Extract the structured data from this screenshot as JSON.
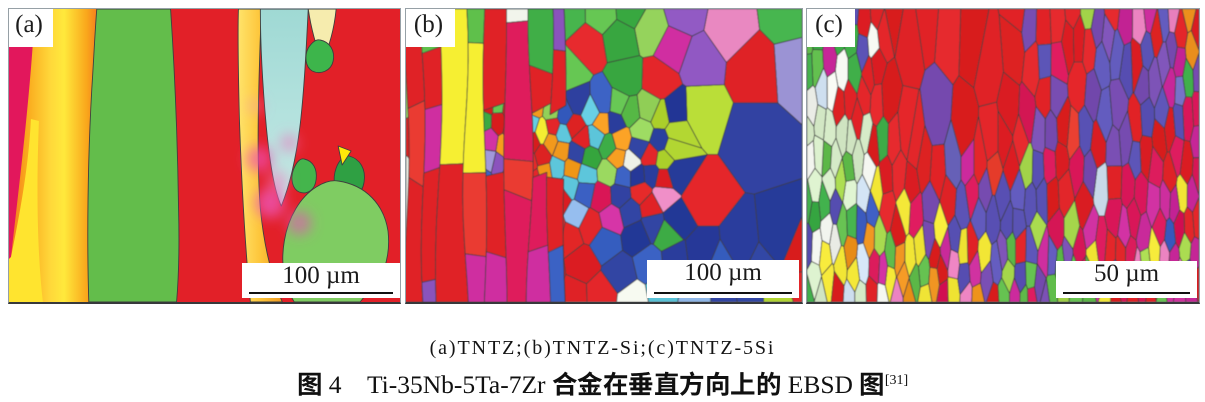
{
  "figure": {
    "panels": [
      {
        "label": "(a)",
        "scale_text": "100 µm"
      },
      {
        "label": "(b)",
        "scale_text": "100 µm"
      },
      {
        "label": "(c)",
        "scale_text": "50 µm"
      }
    ],
    "caption_line1": "(a)TNTZ;(b)TNTZ-Si;(c)TNTZ-5Si",
    "caption_line2": "图 4　Ti-35Nb-5Ta-7Zr 合金在垂直方向上的 EBSD 图",
    "caption_ref": "[31]"
  }
}
